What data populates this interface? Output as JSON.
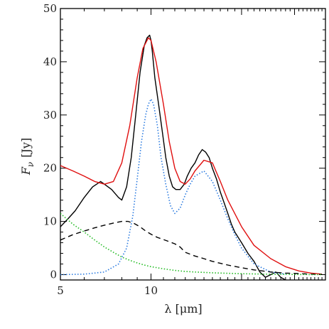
{
  "chart_data": {
    "type": "line",
    "title": "",
    "xlabel": "λ [μm]",
    "ylabel": "F_ν [Jy]",
    "ylabel_parts": {
      "symbol": "F",
      "subscript": "ν",
      "unit": "[Jy]"
    },
    "xscale": "log",
    "xlim": [
      5,
      38
    ],
    "ylim": [
      -1,
      50
    ],
    "x_tick_labels": [
      "5",
      "10"
    ],
    "y_tick_labels": [
      "0",
      "10",
      "20",
      "30",
      "40",
      "50"
    ],
    "legend": "none",
    "grid": false,
    "series": [
      {
        "style": "solid",
        "color": "#000000",
        "x": [
          5.0,
          5.3,
          5.6,
          6.0,
          6.4,
          6.8,
          7.0,
          7.4,
          7.8,
          8.0,
          8.3,
          8.6,
          8.9,
          9.2,
          9.5,
          9.7,
          9.9,
          10.0,
          10.1,
          10.3,
          10.6,
          10.9,
          11.2,
          11.5,
          11.8,
          12.1,
          12.5,
          12.9,
          13.2,
          13.6,
          14.0,
          14.4,
          14.8,
          15.2,
          15.6,
          16.0,
          16.5,
          17.0,
          17.5,
          18.0,
          18.5,
          19.0,
          20.0,
          21.0,
          22.0,
          23.0,
          24.0,
          25.0,
          26.0,
          27.0,
          28.0
        ],
        "y": [
          9,
          10.5,
          12,
          14.5,
          16.5,
          17.5,
          17,
          16,
          14.5,
          14,
          16.5,
          22,
          30,
          38,
          43,
          44.5,
          45,
          44,
          42,
          37,
          32,
          27,
          22,
          18.5,
          16.5,
          16,
          16,
          17,
          18.5,
          20,
          21,
          22.5,
          23.5,
          23,
          22,
          20,
          18,
          15.5,
          13.5,
          11.5,
          9.5,
          8,
          6,
          4,
          2.5,
          0.5,
          -0.5,
          0,
          0.5,
          -0.5,
          -1
        ]
      },
      {
        "style": "solid",
        "color": "#e01010",
        "x": [
          5.0,
          5.5,
          6.0,
          6.5,
          7.0,
          7.5,
          8.0,
          8.5,
          9.0,
          9.4,
          9.8,
          10.0,
          10.4,
          11.0,
          11.5,
          12.0,
          12.5,
          13.0,
          13.5,
          14.0,
          15.0,
          16.0,
          17.0,
          18.0,
          20.0,
          22.0,
          25.0,
          28.0,
          31.0,
          34.0,
          37.0
        ],
        "y": [
          20.5,
          19.5,
          18.5,
          17.5,
          17,
          17.5,
          21,
          28,
          37,
          42.5,
          44.5,
          44,
          40,
          32,
          25,
          20,
          17.5,
          17,
          18,
          19.5,
          21.5,
          21,
          17.5,
          14,
          9,
          5.5,
          3,
          1.5,
          0.7,
          0.3,
          0.1
        ]
      },
      {
        "style": "dotted",
        "color": "#2a7ae0",
        "x": [
          5.0,
          6.0,
          7.0,
          7.8,
          8.3,
          8.7,
          9.0,
          9.3,
          9.6,
          9.8,
          10.0,
          10.2,
          10.5,
          10.8,
          11.2,
          11.6,
          12.0,
          12.5,
          13.0,
          13.5,
          14.0,
          15.0,
          16.0,
          17.0,
          18.0,
          19.0,
          20.0,
          22.0,
          25.0,
          28.0
        ],
        "y": [
          0,
          0.1,
          0.5,
          2,
          5,
          11,
          18,
          25,
          30,
          32,
          33,
          32,
          28,
          22,
          17,
          13,
          11.5,
          12.5,
          15,
          17,
          18.5,
          19.5,
          17.5,
          14,
          10.5,
          7.5,
          5,
          2,
          0.5,
          0.1
        ]
      },
      {
        "style": "dashed",
        "color": "#000000",
        "x": [
          5.0,
          5.5,
          6.0,
          6.5,
          7.0,
          7.5,
          8.0,
          8.4,
          8.8,
          9.2,
          9.6,
          10.0,
          10.5,
          11.0,
          11.5,
          12.0,
          12.5,
          13.0,
          14.0,
          15.0,
          16.0,
          18.0,
          20.0,
          22.0,
          25.0,
          28.0,
          31.0,
          34.0,
          37.0
        ],
        "y": [
          6.5,
          7.5,
          8.2,
          8.8,
          9.3,
          9.7,
          10,
          10,
          9.6,
          9,
          8.2,
          7.6,
          7,
          6.6,
          6.2,
          5.8,
          5.2,
          4.2,
          3.5,
          3,
          2.5,
          1.8,
          1.3,
          0.9,
          0.5,
          0.3,
          0.2,
          0.1,
          0.05
        ]
      },
      {
        "style": "dotted",
        "color": "#22bb22",
        "x": [
          5.0,
          5.5,
          6.0,
          6.5,
          7.0,
          7.5,
          8.0,
          8.5,
          9.0,
          9.5,
          10.0,
          11.0,
          12.0,
          13.0,
          14.0,
          16.0,
          18.0,
          20.0,
          24.0,
          28.0,
          33.0,
          37.0
        ],
        "y": [
          11.5,
          9.5,
          8,
          6.5,
          5.2,
          4.2,
          3.3,
          2.7,
          2.2,
          1.8,
          1.5,
          1.1,
          0.8,
          0.6,
          0.5,
          0.35,
          0.25,
          0.18,
          0.1,
          0.05,
          0.02,
          0.01
        ]
      }
    ]
  }
}
